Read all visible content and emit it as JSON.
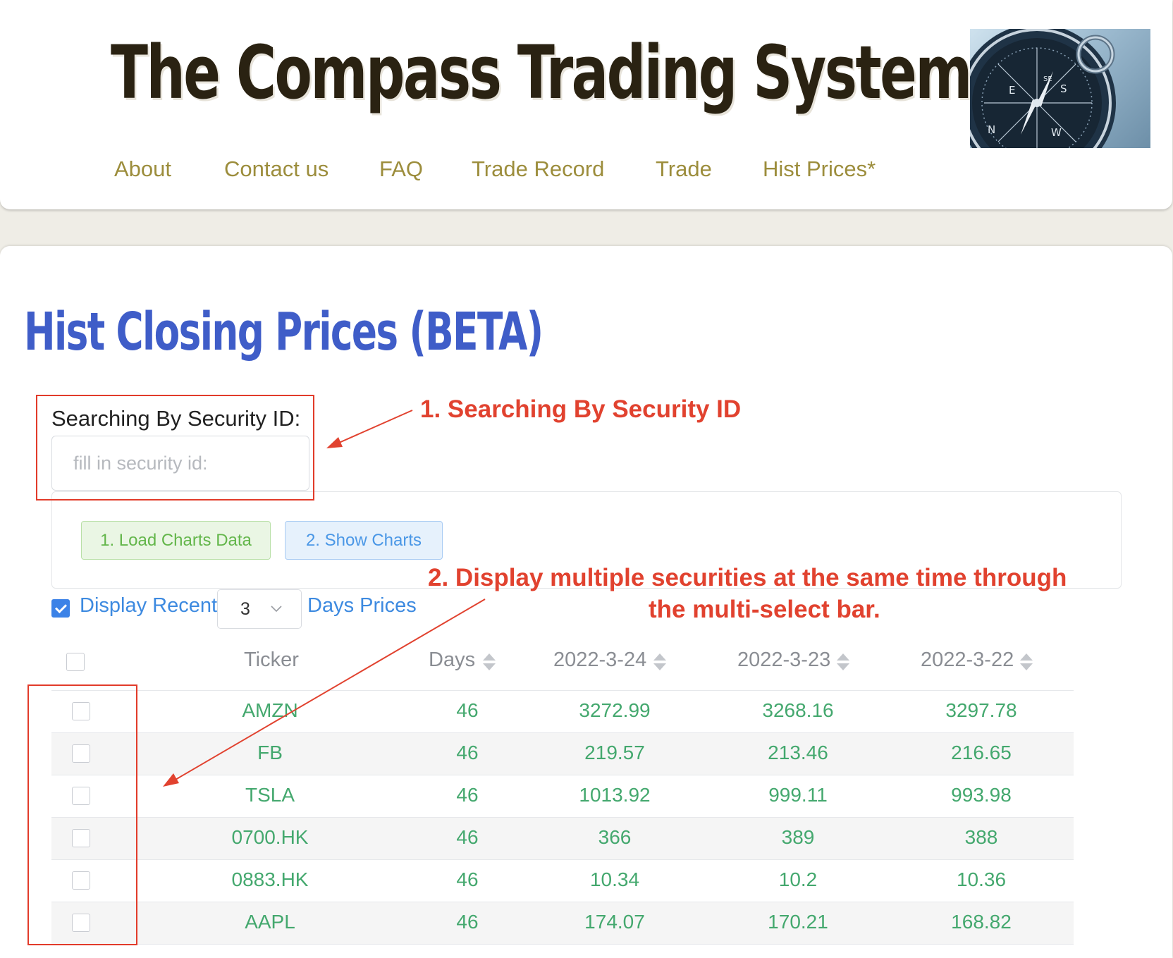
{
  "header": {
    "title": "The Compass Trading System",
    "logo_icon": "compass-icon",
    "nav": [
      "About",
      "Contact us",
      "FAQ",
      "Trade Record",
      "Trade",
      "Hist Prices*"
    ]
  },
  "main": {
    "title": "Hist Closing Prices (BETA)",
    "search": {
      "label": "Searching By Security ID:",
      "placeholder": "fill in security id:",
      "value": ""
    },
    "buttons": {
      "load": "1. Load Charts Data",
      "show": "2. Show Charts"
    },
    "recent": {
      "checked": true,
      "prefix": "Display Recent",
      "days": "3",
      "suffix": "Days Prices"
    },
    "table": {
      "columns": [
        "Ticker",
        "Days",
        "2022-3-24",
        "2022-3-23",
        "2022-3-22"
      ],
      "rows": [
        [
          "AMZN",
          "46",
          "3272.99",
          "3268.16",
          "3297.78"
        ],
        [
          "FB",
          "46",
          "219.57",
          "213.46",
          "216.65"
        ],
        [
          "TSLA",
          "46",
          "1013.92",
          "999.11",
          "993.98"
        ],
        [
          "0700.HK",
          "46",
          "366",
          "389",
          "388"
        ],
        [
          "0883.HK",
          "46",
          "10.34",
          "10.2",
          "10.36"
        ],
        [
          "AAPL",
          "46",
          "174.07",
          "170.21",
          "168.82"
        ]
      ]
    }
  },
  "annotations": {
    "first": "1. Searching By Security ID",
    "second_line1": "2. Display multiple securities at the same time through",
    "second_line2": "the multi-select bar."
  },
  "colors": {
    "title": "#2a2212",
    "nav": "#9c8d3c",
    "page_title": "#3f5dc8",
    "link_blue": "#3d8ae0",
    "cell_green": "#44a86e",
    "annotation_red": "#e1422f"
  }
}
